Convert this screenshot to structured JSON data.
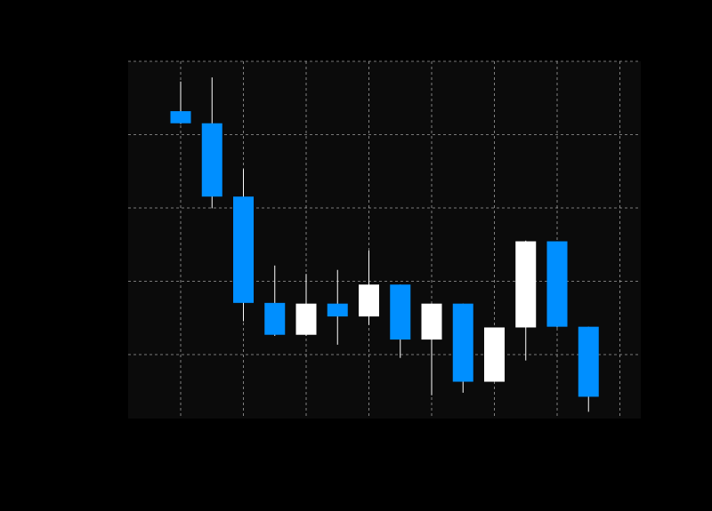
{
  "chart_data": {
    "type": "candlestick",
    "grid": true,
    "ylim": [
      0,
      100
    ],
    "x": [
      1,
      2,
      3,
      4,
      5,
      6,
      7,
      8,
      9,
      10,
      11,
      12,
      13,
      14
    ],
    "series": [
      {
        "values": [
          {
            "open": 86.4,
            "high": 94.5,
            "low": 82.9,
            "close": 83.1
          },
          {
            "open": 83.1,
            "high": 95.6,
            "low": 59.9,
            "close": 63.1
          },
          {
            "open": 63.1,
            "high": 70.6,
            "low": 29.1,
            "close": 34.1
          },
          {
            "open": 34.1,
            "high": 44.3,
            "low": 25.1,
            "close": 25.4
          },
          {
            "open": 25.4,
            "high": 42.0,
            "low": 25.1,
            "close": 33.9
          },
          {
            "open": 33.9,
            "high": 43.1,
            "low": 22.7,
            "close": 30.4
          },
          {
            "open": 30.4,
            "high": 48.4,
            "low": 28.1,
            "close": 39.1
          },
          {
            "open": 39.1,
            "high": 39.1,
            "low": 19.1,
            "close": 24.1
          },
          {
            "open": 24.1,
            "high": 33.9,
            "low": 8.9,
            "close": 33.9
          },
          {
            "open": 33.9,
            "high": 33.9,
            "low": 9.6,
            "close": 12.6
          },
          {
            "open": 12.6,
            "high": 27.4,
            "low": 12.6,
            "close": 27.4
          },
          {
            "open": 27.4,
            "high": 51.1,
            "low": 18.4,
            "close": 50.9
          },
          {
            "open": 50.9,
            "high": 50.9,
            "low": 27.4,
            "close": 27.6
          },
          {
            "open": 27.6,
            "high": 27.6,
            "low": 4.4,
            "close": 8.5
          }
        ]
      }
    ]
  },
  "colors": {
    "page_background": "#000000",
    "plot_background": "#0b0b0b",
    "grid": "#cfcfcf",
    "bearish": "#008fff",
    "bullish": "#ffffff",
    "wick": "#ffffff"
  }
}
